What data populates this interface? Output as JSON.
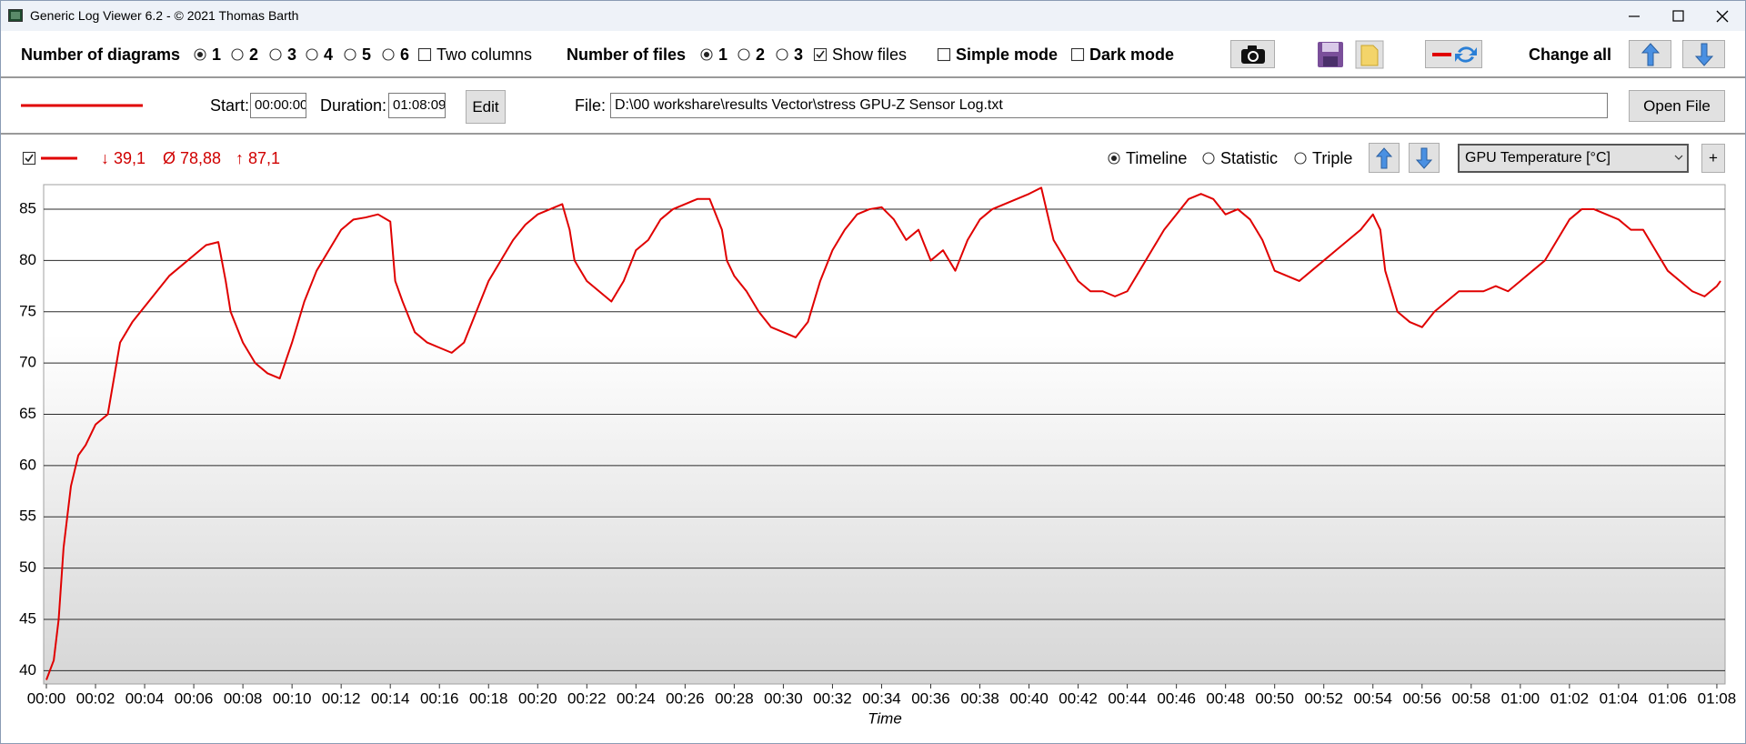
{
  "window": {
    "title": "Generic Log Viewer 6.2 - © 2021 Thomas Barth"
  },
  "toolbar": {
    "diagrams_label": "Number of diagrams",
    "diagram_options": [
      "1",
      "2",
      "3",
      "4",
      "5",
      "6"
    ],
    "two_columns": "Two columns",
    "files_label": "Number of files",
    "file_options": [
      "1",
      "2",
      "3"
    ],
    "show_files": "Show files",
    "simple_mode": "Simple mode",
    "dark_mode": "Dark mode",
    "change_all": "Change all"
  },
  "file_row": {
    "start_label": "Start:",
    "start": "00:00:00",
    "duration_label": "Duration:",
    "duration": "01:08:09",
    "edit": "Edit",
    "file_label": "File:",
    "file": "D:\\00 workshare\\results Vector\\stress GPU-Z Sensor Log.txt",
    "open_file": "Open File"
  },
  "chart_header": {
    "min": "↓ 39,1",
    "avg": "Ø 78,88",
    "max": "↑ 87,1",
    "views": [
      "Timeline",
      "Statistic",
      "Triple"
    ],
    "channel": "GPU Temperature [°C]",
    "add": "+"
  },
  "chart_data": {
    "type": "line",
    "x_label": "Time",
    "x": [
      0,
      0.3,
      0.5,
      0.7,
      1,
      1.3,
      1.6,
      2,
      2.5,
      3,
      3.5,
      4,
      4.5,
      5,
      5.5,
      6,
      6.5,
      7,
      7.3,
      7.5,
      8,
      8.5,
      9,
      9.5,
      10,
      10.5,
      11,
      11.5,
      12,
      12.5,
      13,
      13.5,
      14,
      14.2,
      14.5,
      15,
      15.5,
      16,
      16.5,
      17,
      17.5,
      18,
      18.5,
      19,
      19.5,
      20,
      20.5,
      21,
      21.3,
      21.5,
      22,
      22.5,
      23,
      23.5,
      24,
      24.5,
      25,
      25.5,
      26,
      26.5,
      27,
      27.5,
      27.7,
      28,
      28.5,
      29,
      29.5,
      30,
      30.5,
      31,
      31.5,
      32,
      32.5,
      33,
      33.5,
      34,
      34.5,
      35,
      35.5,
      36,
      36.5,
      37,
      37.5,
      38,
      38.5,
      39,
      39.5,
      40,
      40.5,
      41,
      41.5,
      42,
      42.5,
      43,
      43.5,
      44,
      44.5,
      45,
      45.5,
      46,
      46.5,
      47,
      47.5,
      48,
      48.5,
      49,
      49.5,
      50,
      50.5,
      51,
      51.5,
      52,
      52.5,
      53,
      53.5,
      54,
      54.3,
      54.5,
      55,
      55.5,
      56,
      56.5,
      57,
      57.5,
      58,
      58.5,
      59,
      59.5,
      60,
      60.5,
      61,
      61.5,
      62,
      62.5,
      63,
      63.5,
      64,
      64.5,
      65,
      65.5,
      66,
      66.5,
      67,
      67.5,
      68,
      68.15
    ],
    "series": [
      {
        "color": "#e00000",
        "values": [
          39.1,
          41,
          45,
          52,
          58,
          61,
          62,
          64,
          65,
          72,
          74,
          75.5,
          77,
          78.5,
          79.5,
          80.5,
          81.5,
          81.8,
          78,
          75,
          72,
          70,
          69,
          68.5,
          72,
          76,
          79,
          81,
          83,
          84,
          84.2,
          84.5,
          83.8,
          78,
          76,
          73,
          72,
          71.5,
          71,
          72,
          75,
          78,
          80,
          82,
          83.5,
          84.5,
          85,
          85.5,
          83,
          80,
          78,
          77,
          76,
          78,
          81,
          82,
          84,
          85,
          85.5,
          86,
          86,
          83,
          80,
          78.5,
          77,
          75,
          73.5,
          73,
          72.5,
          74,
          78,
          81,
          83,
          84.5,
          85,
          85.2,
          84,
          82,
          83,
          80,
          81,
          79,
          82,
          84,
          85,
          85.5,
          86,
          86.5,
          87.1,
          82,
          80,
          78,
          77,
          77,
          76.5,
          77,
          79,
          81,
          83,
          84.5,
          86,
          86.5,
          86,
          84.5,
          85,
          84,
          82,
          79,
          78.5,
          78,
          79,
          80,
          81,
          82,
          83,
          84.5,
          83,
          79,
          75,
          74,
          73.5,
          75,
          76,
          77,
          77,
          77,
          77.5,
          77,
          78,
          79,
          80,
          82,
          84,
          85,
          85,
          84.5,
          84,
          83,
          83,
          81,
          79,
          78,
          77,
          76.5,
          77.5,
          78
        ]
      }
    ],
    "xlim": [
      0,
      68.15
    ],
    "xticks": [
      {
        "value": 0,
        "label": "00:00"
      },
      {
        "value": 2,
        "label": "00:02"
      },
      {
        "value": 4,
        "label": "00:04"
      },
      {
        "value": 6,
        "label": "00:06"
      },
      {
        "value": 8,
        "label": "00:08"
      },
      {
        "value": 10,
        "label": "00:10"
      },
      {
        "value": 12,
        "label": "00:12"
      },
      {
        "value": 14,
        "label": "00:14"
      },
      {
        "value": 16,
        "label": "00:16"
      },
      {
        "value": 18,
        "label": "00:18"
      },
      {
        "value": 20,
        "label": "00:20"
      },
      {
        "value": 22,
        "label": "00:22"
      },
      {
        "value": 24,
        "label": "00:24"
      },
      {
        "value": 26,
        "label": "00:26"
      },
      {
        "value": 28,
        "label": "00:28"
      },
      {
        "value": 30,
        "label": "00:30"
      },
      {
        "value": 32,
        "label": "00:32"
      },
      {
        "value": 34,
        "label": "00:34"
      },
      {
        "value": 36,
        "label": "00:36"
      },
      {
        "value": 38,
        "label": "00:38"
      },
      {
        "value": 40,
        "label": "00:40"
      },
      {
        "value": 42,
        "label": "00:42"
      },
      {
        "value": 44,
        "label": "00:44"
      },
      {
        "value": 46,
        "label": "00:46"
      },
      {
        "value": 48,
        "label": "00:48"
      },
      {
        "value": 50,
        "label": "00:50"
      },
      {
        "value": 52,
        "label": "00:52"
      },
      {
        "value": 54,
        "label": "00:54"
      },
      {
        "value": 56,
        "label": "00:56"
      },
      {
        "value": 58,
        "label": "00:58"
      },
      {
        "value": 60,
        "label": "01:00"
      },
      {
        "value": 62,
        "label": "01:02"
      },
      {
        "value": 64,
        "label": "01:04"
      },
      {
        "value": 66,
        "label": "01:06"
      },
      {
        "value": 68,
        "label": "01:08"
      }
    ],
    "ylim": [
      38.7,
      87.4
    ],
    "yticks": [
      40,
      45,
      50,
      55,
      60,
      65,
      70,
      75,
      80,
      85
    ],
    "grid": true
  }
}
